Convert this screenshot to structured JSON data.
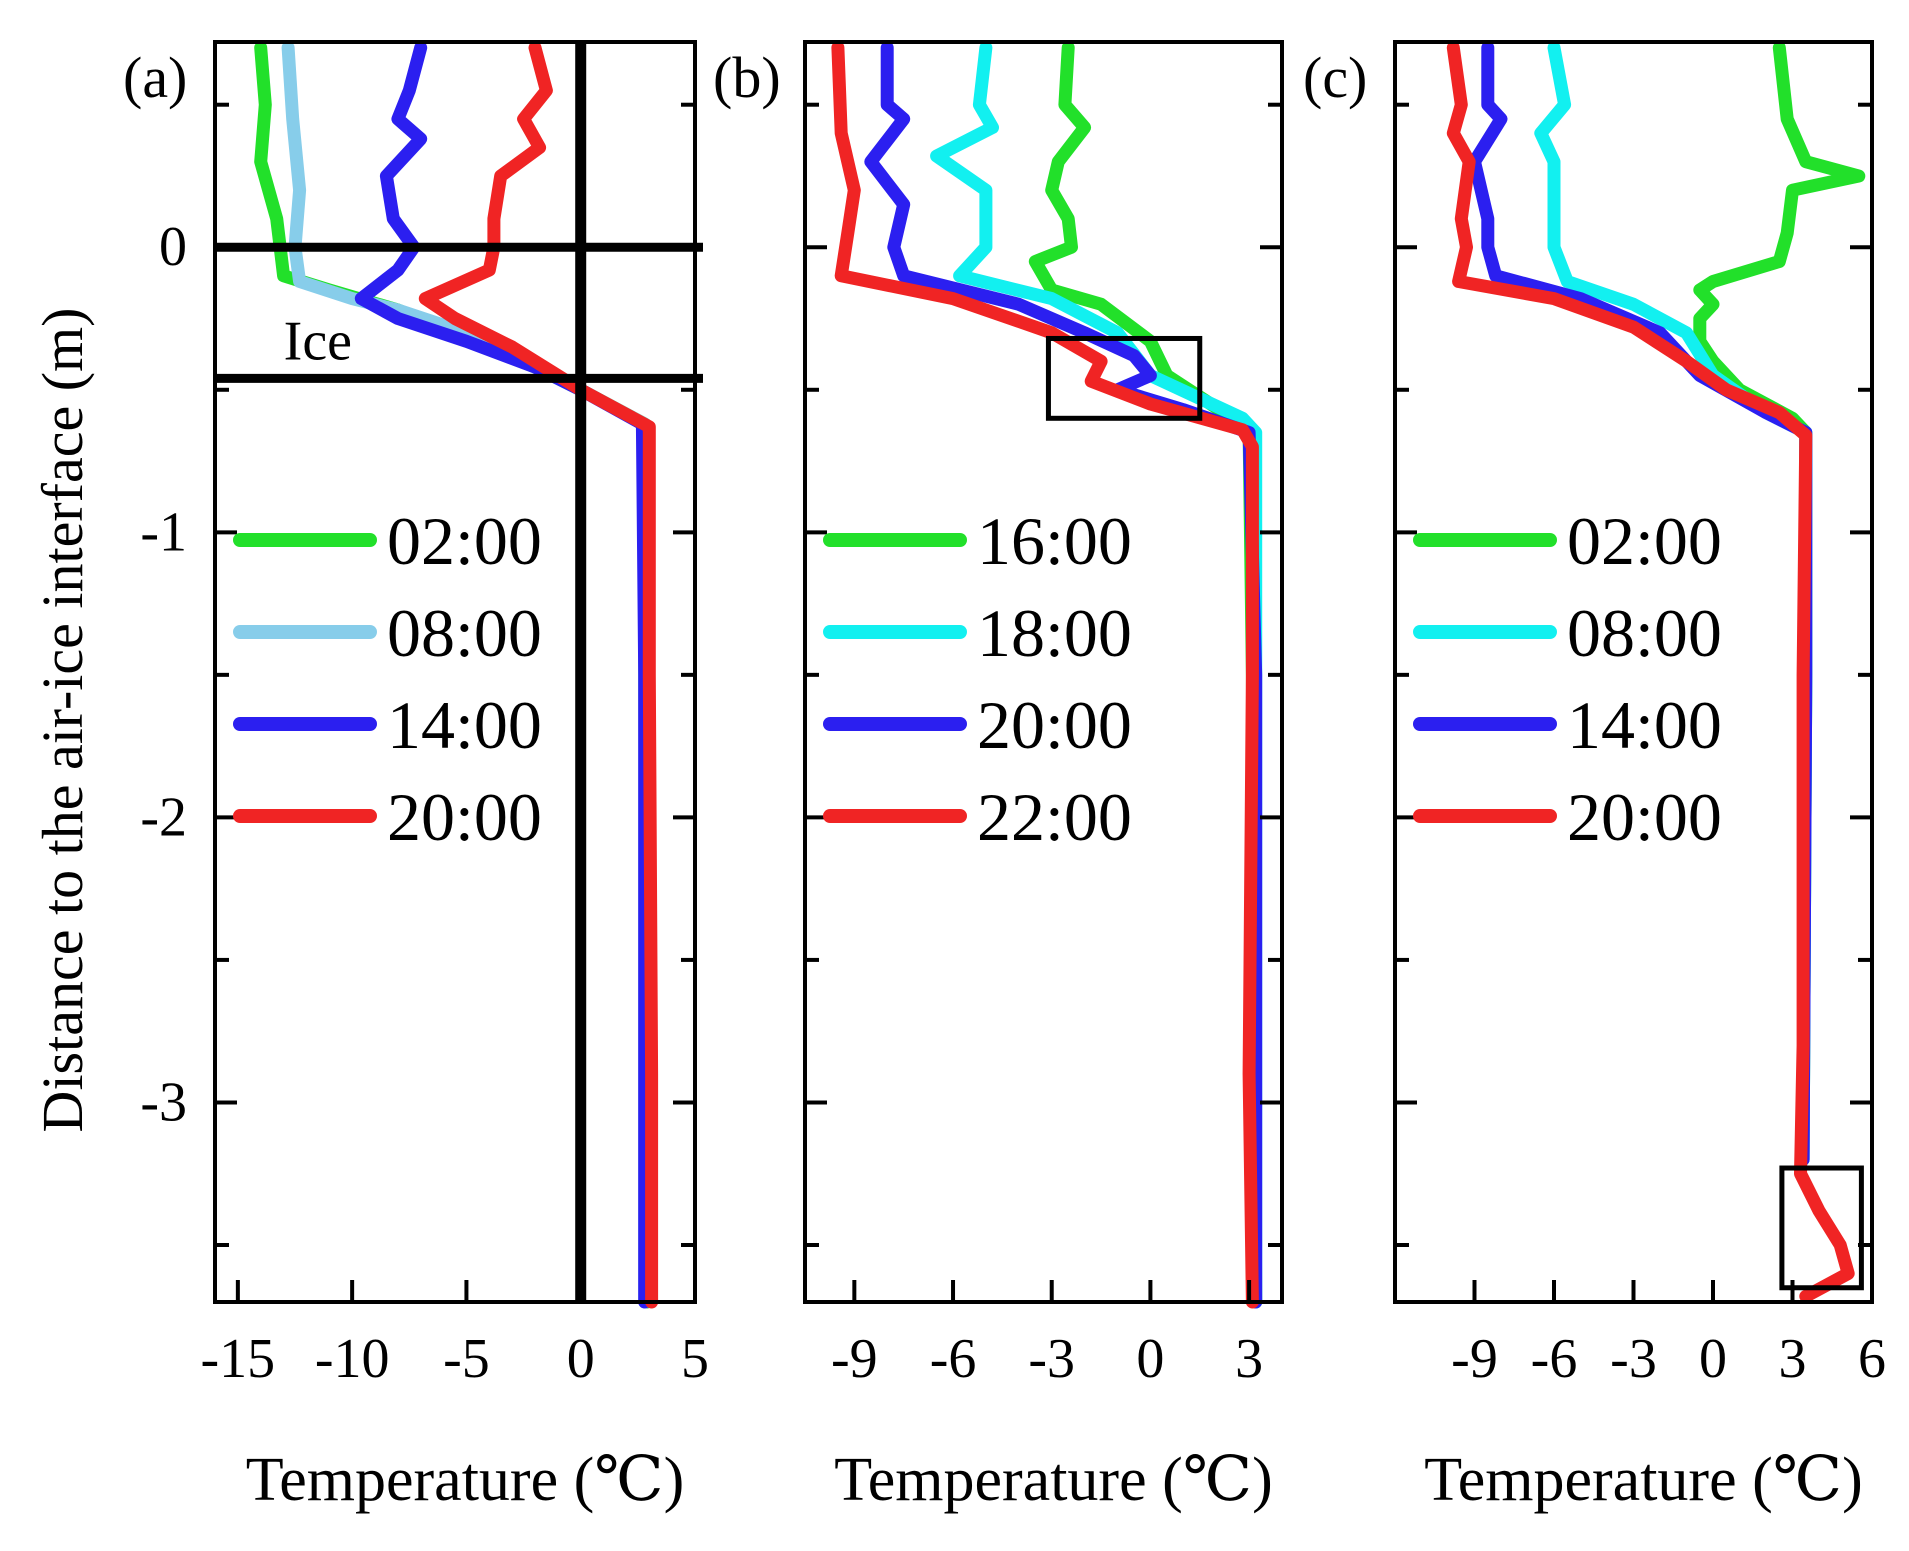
{
  "figure": {
    "ylabel": "Distance to the air-ice interface (m)"
  },
  "chart_data": [
    {
      "type": "line",
      "panel_label": "(a)",
      "xlabel": "Temperature (℃)",
      "ylabel": "Distance to the air-ice interface (m)",
      "xlim": [
        -16,
        5
      ],
      "ylim": [
        -3.7,
        0.72
      ],
      "xticks": [
        -15,
        -10,
        -5,
        0,
        5
      ],
      "xtick_labels": [
        "-15",
        "-10",
        "-5",
        "0",
        "5"
      ],
      "yticks": [
        0,
        -1,
        -2,
        -3
      ],
      "ytick_labels": [
        "0",
        "-1",
        "-2",
        "-3"
      ],
      "legend": [
        "02:00",
        "08:00",
        "14:00",
        "20:00"
      ],
      "annotations": [
        {
          "text": "Ice",
          "x": -11.5,
          "y": -0.33
        }
      ],
      "ref_lines": {
        "horizontal": [
          0,
          -0.46
        ],
        "vertical": [
          0
        ]
      },
      "series": [
        {
          "name": "02:00",
          "color": "#22e02a",
          "points": [
            [
              -14,
              0.7
            ],
            [
              -13.8,
              0.5
            ],
            [
              -14,
              0.3
            ],
            [
              -13.3,
              0.1
            ],
            [
              -13,
              -0.1
            ],
            [
              -11,
              -0.15
            ],
            [
              -8,
              -0.22
            ],
            [
              -5,
              -0.32
            ],
            [
              -2,
              -0.42
            ],
            [
              0,
              -0.5
            ],
            [
              2.8,
              -0.62
            ],
            [
              2.8,
              -1.5
            ],
            [
              2.9,
              -3.7
            ]
          ]
        },
        {
          "name": "08:00",
          "color": "#87cdea",
          "points": [
            [
              -12.8,
              0.7
            ],
            [
              -12.6,
              0.45
            ],
            [
              -12.3,
              0.2
            ],
            [
              -12.5,
              0
            ],
            [
              -12.3,
              -0.12
            ],
            [
              -10,
              -0.18
            ],
            [
              -8,
              -0.22
            ],
            [
              -5,
              -0.3
            ],
            [
              -2,
              -0.42
            ],
            [
              0,
              -0.5
            ],
            [
              2.8,
              -0.62
            ],
            [
              2.8,
              -1.5
            ],
            [
              2.8,
              -3.7
            ]
          ]
        },
        {
          "name": "14:00",
          "color": "#2b1ff0",
          "points": [
            [
              -7,
              0.7
            ],
            [
              -7.5,
              0.55
            ],
            [
              -8,
              0.45
            ],
            [
              -7,
              0.38
            ],
            [
              -8.5,
              0.25
            ],
            [
              -8.2,
              0.1
            ],
            [
              -7.3,
              0
            ],
            [
              -8,
              -0.08
            ],
            [
              -9.6,
              -0.18
            ],
            [
              -8,
              -0.25
            ],
            [
              -5,
              -0.33
            ],
            [
              -2,
              -0.42
            ],
            [
              0,
              -0.5
            ],
            [
              2.7,
              -0.62
            ],
            [
              2.8,
              -1.5
            ],
            [
              2.8,
              -3.7
            ]
          ]
        },
        {
          "name": "20:00",
          "color": "#f02424",
          "points": [
            [
              -2,
              0.7
            ],
            [
              -1.5,
              0.55
            ],
            [
              -2.5,
              0.45
            ],
            [
              -1.8,
              0.35
            ],
            [
              -3.5,
              0.25
            ],
            [
              -3.8,
              0.1
            ],
            [
              -3.8,
              0
            ],
            [
              -4,
              -0.08
            ],
            [
              -6.8,
              -0.18
            ],
            [
              -5.5,
              -0.25
            ],
            [
              -3,
              -0.35
            ],
            [
              -1,
              -0.45
            ],
            [
              0,
              -0.5
            ],
            [
              3,
              -0.63
            ],
            [
              3,
              -1.5
            ],
            [
              3.1,
              -2.9
            ],
            [
              3.1,
              -3.7
            ]
          ]
        }
      ]
    },
    {
      "type": "line",
      "panel_label": "(b)",
      "xlabel": "Temperature (℃)",
      "xlim": [
        -10.5,
        4
      ],
      "ylim": [
        -3.7,
        0.72
      ],
      "xticks": [
        -9,
        -6,
        -3,
        0,
        3
      ],
      "xtick_labels": [
        "-9",
        "-6",
        "-3",
        "0",
        "3"
      ],
      "yticks": [
        0,
        -1,
        -2,
        -3
      ],
      "legend": [
        "16:00",
        "18:00",
        "20:00",
        "22:00"
      ],
      "highlight_box": {
        "x": [
          -3.1,
          1.5
        ],
        "y": [
          -0.6,
          -0.32
        ]
      },
      "series": [
        {
          "name": "16:00",
          "color": "#22e02a",
          "points": [
            [
              -2.5,
              0.7
            ],
            [
              -2.6,
              0.5
            ],
            [
              -2,
              0.42
            ],
            [
              -2.8,
              0.3
            ],
            [
              -3,
              0.2
            ],
            [
              -2.5,
              0.1
            ],
            [
              -2.4,
              0
            ],
            [
              -3.5,
              -0.05
            ],
            [
              -3,
              -0.15
            ],
            [
              -1.5,
              -0.2
            ],
            [
              0,
              -0.33
            ],
            [
              0.5,
              -0.45
            ],
            [
              2.5,
              -0.6
            ],
            [
              3,
              -0.65
            ],
            [
              3.1,
              -1.5
            ],
            [
              3.2,
              -3.7
            ]
          ]
        },
        {
          "name": "18:00",
          "color": "#12f0f0",
          "points": [
            [
              -5,
              0.7
            ],
            [
              -5.2,
              0.5
            ],
            [
              -4.8,
              0.42
            ],
            [
              -6.5,
              0.32
            ],
            [
              -5,
              0.2
            ],
            [
              -5,
              0
            ],
            [
              -5.8,
              -0.1
            ],
            [
              -3,
              -0.18
            ],
            [
              -1,
              -0.3
            ],
            [
              0,
              -0.45
            ],
            [
              2.8,
              -0.6
            ],
            [
              3.2,
              -0.65
            ],
            [
              3.2,
              -1.5
            ],
            [
              3.2,
              -3.7
            ]
          ]
        },
        {
          "name": "20:00",
          "color": "#2b1ff0",
          "points": [
            [
              -8,
              0.7
            ],
            [
              -8,
              0.5
            ],
            [
              -7.5,
              0.45
            ],
            [
              -8.5,
              0.3
            ],
            [
              -7.5,
              0.15
            ],
            [
              -7.8,
              0
            ],
            [
              -7.5,
              -0.1
            ],
            [
              -4,
              -0.2
            ],
            [
              -2,
              -0.3
            ],
            [
              -0.5,
              -0.38
            ],
            [
              0,
              -0.45
            ],
            [
              -1,
              -0.5
            ],
            [
              1,
              -0.57
            ],
            [
              3,
              -0.65
            ],
            [
              3.2,
              -1.5
            ],
            [
              3.2,
              -3.7
            ]
          ]
        },
        {
          "name": "22:00",
          "color": "#f02424",
          "points": [
            [
              -9.5,
              0.7
            ],
            [
              -9.4,
              0.4
            ],
            [
              -9,
              0.2
            ],
            [
              -9.2,
              0.05
            ],
            [
              -9.4,
              -0.1
            ],
            [
              -6,
              -0.18
            ],
            [
              -3,
              -0.3
            ],
            [
              -1.5,
              -0.4
            ],
            [
              -1.8,
              -0.47
            ],
            [
              0,
              -0.55
            ],
            [
              2.8,
              -0.64
            ],
            [
              3.1,
              -0.7
            ],
            [
              3.1,
              -1.5
            ],
            [
              3,
              -2.9
            ],
            [
              3.1,
              -3.7
            ]
          ]
        }
      ]
    },
    {
      "type": "line",
      "panel_label": "(c)",
      "xlabel": "Temperature (℃)",
      "xlim": [
        -12,
        6
      ],
      "ylim": [
        -3.7,
        0.72
      ],
      "xticks": [
        -9,
        -6,
        -3,
        0,
        3,
        6
      ],
      "xtick_labels": [
        "-9",
        "-6",
        "-3",
        "0",
        "3",
        "6"
      ],
      "yticks": [
        0,
        -1,
        -2,
        -3
      ],
      "legend": [
        "02:00",
        "08:00",
        "14:00",
        "20:00"
      ],
      "highlight_box": {
        "x": [
          2.6,
          5.6
        ],
        "y": [
          -3.65,
          -3.23
        ]
      },
      "series": [
        {
          "name": "02:00",
          "color": "#22e02a",
          "points": [
            [
              2.5,
              0.7
            ],
            [
              2.8,
              0.45
            ],
            [
              3.5,
              0.3
            ],
            [
              5.5,
              0.25
            ],
            [
              3,
              0.2
            ],
            [
              2.8,
              0.05
            ],
            [
              2.5,
              -0.05
            ],
            [
              0,
              -0.12
            ],
            [
              -0.5,
              -0.15
            ],
            [
              0,
              -0.2
            ],
            [
              -0.5,
              -0.25
            ],
            [
              -0.5,
              -0.33
            ],
            [
              0,
              -0.4
            ],
            [
              1,
              -0.5
            ],
            [
              3,
              -0.6
            ],
            [
              3.5,
              -0.65
            ],
            [
              3.5,
              -1.5
            ],
            [
              3.4,
              -3.2
            ]
          ]
        },
        {
          "name": "08:00",
          "color": "#12f0f0",
          "points": [
            [
              -6,
              0.7
            ],
            [
              -5.6,
              0.5
            ],
            [
              -6.5,
              0.4
            ],
            [
              -6,
              0.3
            ],
            [
              -6,
              0
            ],
            [
              -5.5,
              -0.12
            ],
            [
              -3,
              -0.2
            ],
            [
              -1,
              -0.3
            ],
            [
              0,
              -0.45
            ],
            [
              2,
              -0.58
            ],
            [
              3.5,
              -0.65
            ],
            [
              3.5,
              -1.5
            ],
            [
              3.4,
              -3.2
            ]
          ]
        },
        {
          "name": "14:00",
          "color": "#2b1ff0",
          "points": [
            [
              -8.5,
              0.7
            ],
            [
              -8.5,
              0.5
            ],
            [
              -8,
              0.45
            ],
            [
              -9,
              0.3
            ],
            [
              -8.5,
              0.1
            ],
            [
              -8.5,
              0
            ],
            [
              -8.2,
              -0.1
            ],
            [
              -5,
              -0.18
            ],
            [
              -2,
              -0.3
            ],
            [
              -0.5,
              -0.45
            ],
            [
              2,
              -0.58
            ],
            [
              3.5,
              -0.65
            ],
            [
              3.5,
              -1.5
            ],
            [
              3.4,
              -3.2
            ]
          ]
        },
        {
          "name": "20:00",
          "color": "#f02424",
          "points": [
            [
              -9.8,
              0.7
            ],
            [
              -9.5,
              0.5
            ],
            [
              -9.8,
              0.4
            ],
            [
              -9.2,
              0.3
            ],
            [
              -9.5,
              0.1
            ],
            [
              -9.3,
              0
            ],
            [
              -9.6,
              -0.12
            ],
            [
              -6,
              -0.18
            ],
            [
              -3,
              -0.28
            ],
            [
              -1,
              -0.4
            ],
            [
              0.5,
              -0.5
            ],
            [
              2.5,
              -0.58
            ],
            [
              3.5,
              -0.66
            ],
            [
              3.4,
              -1.5
            ],
            [
              3.4,
              -2.8
            ],
            [
              3.3,
              -3.25
            ],
            [
              4,
              -3.38
            ],
            [
              4.8,
              -3.5
            ],
            [
              5.1,
              -3.6
            ],
            [
              3.5,
              -3.68
            ]
          ]
        }
      ]
    }
  ]
}
